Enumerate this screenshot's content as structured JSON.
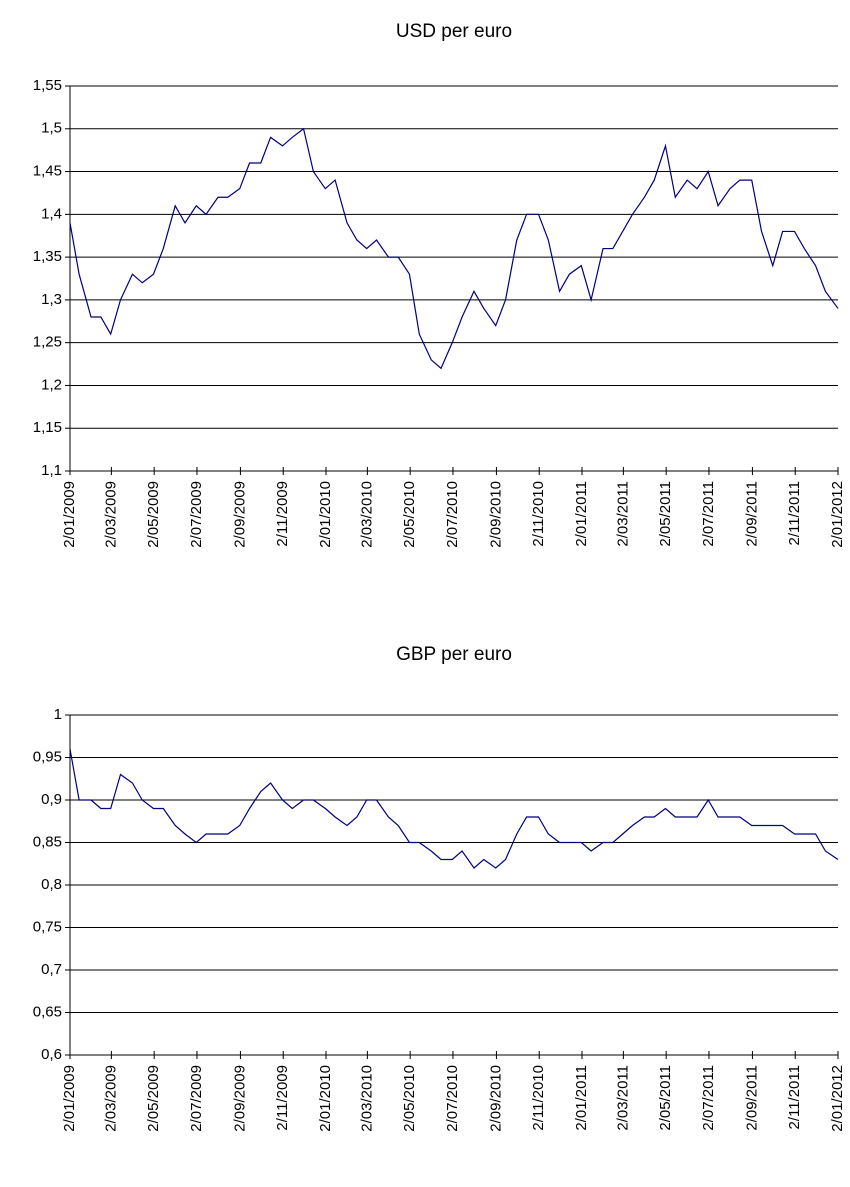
{
  "chart_data": [
    {
      "type": "line",
      "title": "USD per euro",
      "x": [
        "2009-01-02",
        "2009-01-15",
        "2009-02-01",
        "2009-02-15",
        "2009-03-01",
        "2009-03-15",
        "2009-04-01",
        "2009-04-15",
        "2009-05-01",
        "2009-05-15",
        "2009-06-01",
        "2009-06-15",
        "2009-07-01",
        "2009-07-15",
        "2009-08-01",
        "2009-08-15",
        "2009-09-01",
        "2009-09-15",
        "2009-10-01",
        "2009-10-15",
        "2009-11-01",
        "2009-11-15",
        "2009-12-01",
        "2009-12-15",
        "2010-01-01",
        "2010-01-15",
        "2010-02-01",
        "2010-02-15",
        "2010-03-01",
        "2010-03-15",
        "2010-04-01",
        "2010-04-15",
        "2010-05-01",
        "2010-05-15",
        "2010-06-01",
        "2010-06-15",
        "2010-07-01",
        "2010-07-15",
        "2010-08-01",
        "2010-08-15",
        "2010-09-01",
        "2010-09-15",
        "2010-10-01",
        "2010-10-15",
        "2010-11-01",
        "2010-11-15",
        "2010-12-01",
        "2010-12-15",
        "2011-01-01",
        "2011-01-15",
        "2011-02-01",
        "2011-02-15",
        "2011-03-01",
        "2011-03-15",
        "2011-04-01",
        "2011-04-15",
        "2011-05-01",
        "2011-05-15",
        "2011-06-01",
        "2011-06-15",
        "2011-07-01",
        "2011-07-15",
        "2011-08-01",
        "2011-08-15",
        "2011-09-01",
        "2011-09-15",
        "2011-10-01",
        "2011-10-15",
        "2011-11-01",
        "2011-11-15",
        "2011-12-01",
        "2011-12-15",
        "2012-01-02"
      ],
      "series": [
        {
          "color": "#000080",
          "values": [
            1.39,
            1.33,
            1.28,
            1.28,
            1.26,
            1.3,
            1.33,
            1.32,
            1.33,
            1.36,
            1.41,
            1.39,
            1.41,
            1.4,
            1.42,
            1.42,
            1.43,
            1.46,
            1.46,
            1.49,
            1.48,
            1.49,
            1.5,
            1.45,
            1.43,
            1.44,
            1.39,
            1.37,
            1.36,
            1.37,
            1.35,
            1.35,
            1.33,
            1.26,
            1.23,
            1.22,
            1.25,
            1.28,
            1.31,
            1.29,
            1.27,
            1.3,
            1.37,
            1.4,
            1.4,
            1.37,
            1.31,
            1.33,
            1.34,
            1.3,
            1.36,
            1.36,
            1.38,
            1.4,
            1.42,
            1.44,
            1.48,
            1.42,
            1.44,
            1.43,
            1.45,
            1.41,
            1.43,
            1.44,
            1.44,
            1.38,
            1.34,
            1.38,
            1.38,
            1.36,
            1.34,
            1.31,
            1.29
          ]
        }
      ],
      "xlim": [
        "2009-01-02",
        "2012-01-02"
      ],
      "xticks": [
        {
          "value": "2009-01-02",
          "label": "2/01/2009"
        },
        {
          "value": "2009-03-02",
          "label": "2/03/2009"
        },
        {
          "value": "2009-05-02",
          "label": "2/05/2009"
        },
        {
          "value": "2009-07-02",
          "label": "2/07/2009"
        },
        {
          "value": "2009-09-02",
          "label": "2/09/2009"
        },
        {
          "value": "2009-11-02",
          "label": "2/11/2009"
        },
        {
          "value": "2010-01-02",
          "label": "2/01/2010"
        },
        {
          "value": "2010-03-02",
          "label": "2/03/2010"
        },
        {
          "value": "2010-05-02",
          "label": "2/05/2010"
        },
        {
          "value": "2010-07-02",
          "label": "2/07/2010"
        },
        {
          "value": "2010-09-02",
          "label": "2/09/2010"
        },
        {
          "value": "2010-11-02",
          "label": "2/11/2010"
        },
        {
          "value": "2011-01-02",
          "label": "2/01/2011"
        },
        {
          "value": "2011-03-02",
          "label": "2/03/2011"
        },
        {
          "value": "2011-05-02",
          "label": "2/05/2011"
        },
        {
          "value": "2011-07-02",
          "label": "2/07/2011"
        },
        {
          "value": "2011-09-02",
          "label": "2/09/2011"
        },
        {
          "value": "2011-11-02",
          "label": "2/11/2011"
        },
        {
          "value": "2012-01-02",
          "label": "2/01/2012"
        }
      ],
      "ylim": [
        1.1,
        1.55
      ],
      "yticks": [
        {
          "value": 1.1,
          "label": "1,1"
        },
        {
          "value": 1.15,
          "label": "1,15"
        },
        {
          "value": 1.2,
          "label": "1,2"
        },
        {
          "value": 1.25,
          "label": "1,25"
        },
        {
          "value": 1.3,
          "label": "1,3"
        },
        {
          "value": 1.35,
          "label": "1,35"
        },
        {
          "value": 1.4,
          "label": "1,4"
        },
        {
          "value": 1.45,
          "label": "1,45"
        },
        {
          "value": 1.5,
          "label": "1,5"
        },
        {
          "value": 1.55,
          "label": "1,55"
        }
      ],
      "grid": true
    },
    {
      "type": "line",
      "title": "GBP per euro",
      "x": [
        "2009-01-02",
        "2009-01-15",
        "2009-02-01",
        "2009-02-15",
        "2009-03-01",
        "2009-03-15",
        "2009-04-01",
        "2009-04-15",
        "2009-05-01",
        "2009-05-15",
        "2009-06-01",
        "2009-06-15",
        "2009-07-01",
        "2009-07-15",
        "2009-08-01",
        "2009-08-15",
        "2009-09-01",
        "2009-09-15",
        "2009-10-01",
        "2009-10-15",
        "2009-11-01",
        "2009-11-15",
        "2009-12-01",
        "2009-12-15",
        "2010-01-01",
        "2010-01-15",
        "2010-02-01",
        "2010-02-15",
        "2010-03-01",
        "2010-03-15",
        "2010-04-01",
        "2010-04-15",
        "2010-05-01",
        "2010-05-15",
        "2010-06-01",
        "2010-06-15",
        "2010-07-01",
        "2010-07-15",
        "2010-08-01",
        "2010-08-15",
        "2010-09-01",
        "2010-09-15",
        "2010-10-01",
        "2010-10-15",
        "2010-11-01",
        "2010-11-15",
        "2010-12-01",
        "2010-12-15",
        "2011-01-01",
        "2011-01-15",
        "2011-02-01",
        "2011-02-15",
        "2011-03-01",
        "2011-03-15",
        "2011-04-01",
        "2011-04-15",
        "2011-05-01",
        "2011-05-15",
        "2011-06-01",
        "2011-06-15",
        "2011-07-01",
        "2011-07-15",
        "2011-08-01",
        "2011-08-15",
        "2011-09-01",
        "2011-09-15",
        "2011-10-01",
        "2011-10-15",
        "2011-11-01",
        "2011-11-15",
        "2011-12-01",
        "2011-12-15",
        "2012-01-02"
      ],
      "series": [
        {
          "color": "#000080",
          "values": [
            0.96,
            0.9,
            0.9,
            0.89,
            0.89,
            0.93,
            0.92,
            0.9,
            0.89,
            0.89,
            0.87,
            0.86,
            0.85,
            0.86,
            0.86,
            0.86,
            0.87,
            0.89,
            0.91,
            0.92,
            0.9,
            0.89,
            0.9,
            0.9,
            0.89,
            0.88,
            0.87,
            0.88,
            0.9,
            0.9,
            0.88,
            0.87,
            0.85,
            0.85,
            0.84,
            0.83,
            0.83,
            0.84,
            0.82,
            0.83,
            0.82,
            0.83,
            0.86,
            0.88,
            0.88,
            0.86,
            0.85,
            0.85,
            0.85,
            0.84,
            0.85,
            0.85,
            0.86,
            0.87,
            0.88,
            0.88,
            0.89,
            0.88,
            0.88,
            0.88,
            0.9,
            0.88,
            0.88,
            0.88,
            0.87,
            0.87,
            0.87,
            0.87,
            0.86,
            0.86,
            0.86,
            0.84,
            0.83
          ]
        }
      ],
      "xlim": [
        "2009-01-02",
        "2012-01-02"
      ],
      "xticks": [
        {
          "value": "2009-01-02",
          "label": "2/01/2009"
        },
        {
          "value": "2009-03-02",
          "label": "2/03/2009"
        },
        {
          "value": "2009-05-02",
          "label": "2/05/2009"
        },
        {
          "value": "2009-07-02",
          "label": "2/07/2009"
        },
        {
          "value": "2009-09-02",
          "label": "2/09/2009"
        },
        {
          "value": "2009-11-02",
          "label": "2/11/2009"
        },
        {
          "value": "2010-01-02",
          "label": "2/01/2010"
        },
        {
          "value": "2010-03-02",
          "label": "2/03/2010"
        },
        {
          "value": "2010-05-02",
          "label": "2/05/2010"
        },
        {
          "value": "2010-07-02",
          "label": "2/07/2010"
        },
        {
          "value": "2010-09-02",
          "label": "2/09/2010"
        },
        {
          "value": "2010-11-02",
          "label": "2/11/2010"
        },
        {
          "value": "2011-01-02",
          "label": "2/01/2011"
        },
        {
          "value": "2011-03-02",
          "label": "2/03/2011"
        },
        {
          "value": "2011-05-02",
          "label": "2/05/2011"
        },
        {
          "value": "2011-07-02",
          "label": "2/07/2011"
        },
        {
          "value": "2011-09-02",
          "label": "2/09/2011"
        },
        {
          "value": "2011-11-02",
          "label": "2/11/2011"
        },
        {
          "value": "2012-01-02",
          "label": "2/01/2012"
        }
      ],
      "ylim": [
        0.6,
        1
      ],
      "yticks": [
        {
          "value": 0.6,
          "label": "0,6"
        },
        {
          "value": 0.65,
          "label": "0,65"
        },
        {
          "value": 0.7,
          "label": "0,7"
        },
        {
          "value": 0.75,
          "label": "0,75"
        },
        {
          "value": 0.8,
          "label": "0,8"
        },
        {
          "value": 0.85,
          "label": "0,85"
        },
        {
          "value": 0.9,
          "label": "0,9"
        },
        {
          "value": 0.95,
          "label": "0,95"
        },
        1
      ],
      "grid": true
    }
  ]
}
